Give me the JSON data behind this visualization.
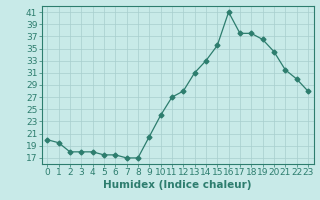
{
  "x": [
    0,
    1,
    2,
    3,
    4,
    5,
    6,
    7,
    8,
    9,
    10,
    11,
    12,
    13,
    14,
    15,
    16,
    17,
    18,
    19,
    20,
    21,
    22,
    23
  ],
  "y": [
    20,
    19.5,
    18,
    18,
    18,
    17.5,
    17.5,
    17,
    17,
    20.5,
    24,
    27,
    28,
    31,
    33,
    35.5,
    41,
    37.5,
    37.5,
    36.5,
    34.5,
    31.5,
    30,
    28
  ],
  "line_color": "#2d7d6e",
  "marker": "D",
  "background_color": "#c8eae8",
  "grid_color": "#a8cece",
  "xlabel": "Humidex (Indice chaleur)",
  "xlim": [
    -0.5,
    23.5
  ],
  "ylim": [
    16.0,
    42.0
  ],
  "yticks": [
    17,
    19,
    21,
    23,
    25,
    27,
    29,
    31,
    33,
    35,
    37,
    39,
    41
  ],
  "xticks": [
    0,
    1,
    2,
    3,
    4,
    5,
    6,
    7,
    8,
    9,
    10,
    11,
    12,
    13,
    14,
    15,
    16,
    17,
    18,
    19,
    20,
    21,
    22,
    23
  ],
  "tick_color": "#2d7d6e",
  "label_color": "#2d7d6e",
  "font_size": 6.5,
  "xlabel_fontsize": 7.5
}
